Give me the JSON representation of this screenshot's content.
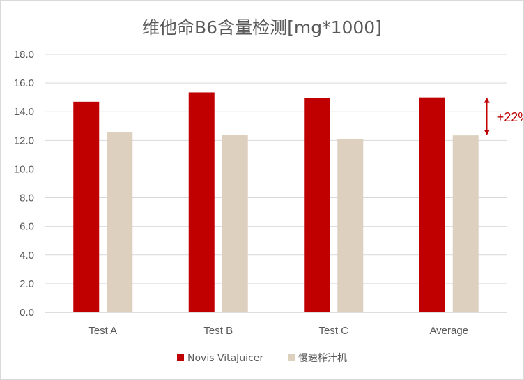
{
  "chart_data": {
    "type": "bar",
    "title": "维他命B6含量检测[mg*1000]",
    "categories": [
      "Test A",
      "Test B",
      "Test C",
      "Average"
    ],
    "series": [
      {
        "name": "Novis VitaJuicer",
        "color": "#c00000",
        "values": [
          14.7,
          15.35,
          14.95,
          15.0
        ]
      },
      {
        "name": "慢速榨汁机",
        "color": "#ddd0bf",
        "values": [
          12.55,
          12.4,
          12.1,
          12.35
        ]
      }
    ],
    "ylim": [
      0,
      18
    ],
    "yticks": [
      "0.0",
      "2.0",
      "4.0",
      "6.0",
      "8.0",
      "10.0",
      "12.0",
      "14.0",
      "16.0",
      "18.0"
    ],
    "grid": true,
    "legend_position": "bottom",
    "annotation": {
      "text": "+22%",
      "category": "Average",
      "color": "#c00000"
    }
  }
}
